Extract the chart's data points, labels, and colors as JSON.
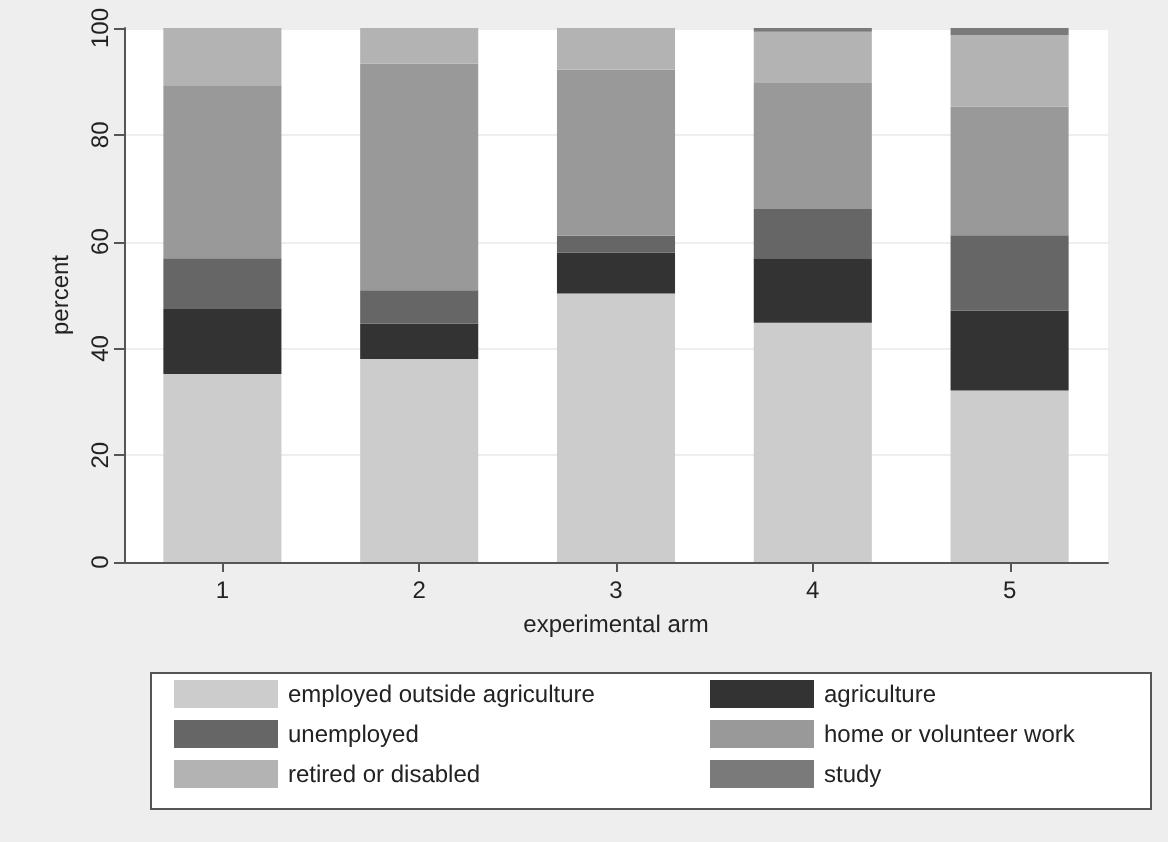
{
  "chart_data": {
    "type": "bar",
    "stacked": true,
    "xlabel": "experimental arm",
    "ylabel": "percent",
    "categories": [
      "1",
      "2",
      "3",
      "4",
      "5"
    ],
    "series": [
      {
        "name": "employed outside agriculture",
        "color": "#cccccc",
        "values": [
          35.2,
          38,
          50.3,
          44.8,
          32.1
        ]
      },
      {
        "name": "agriculture",
        "color": "#333333",
        "values": [
          12.2,
          6.6,
          7.6,
          12.1,
          15
        ]
      },
      {
        "name": "unemployed",
        "color": "#666666",
        "values": [
          9.5,
          6.3,
          3.2,
          9.2,
          14.1
        ]
      },
      {
        "name": "home or volunteer work",
        "color": "#999999",
        "values": [
          32.4,
          42.4,
          31.1,
          23.6,
          24.1
        ]
      },
      {
        "name": "retired or disabled",
        "color": "#b3b3b3",
        "values": [
          10.7,
          6.7,
          7.8,
          9.6,
          13.4
        ]
      },
      {
        "name": "study",
        "color": "#7a7a7a",
        "values": [
          0,
          0,
          0,
          0.7,
          1.3
        ]
      }
    ],
    "ylim": [
      0,
      100
    ],
    "yticks": [
      0,
      20,
      40,
      60,
      80,
      100
    ],
    "grid": "y",
    "legend": "bottom"
  }
}
